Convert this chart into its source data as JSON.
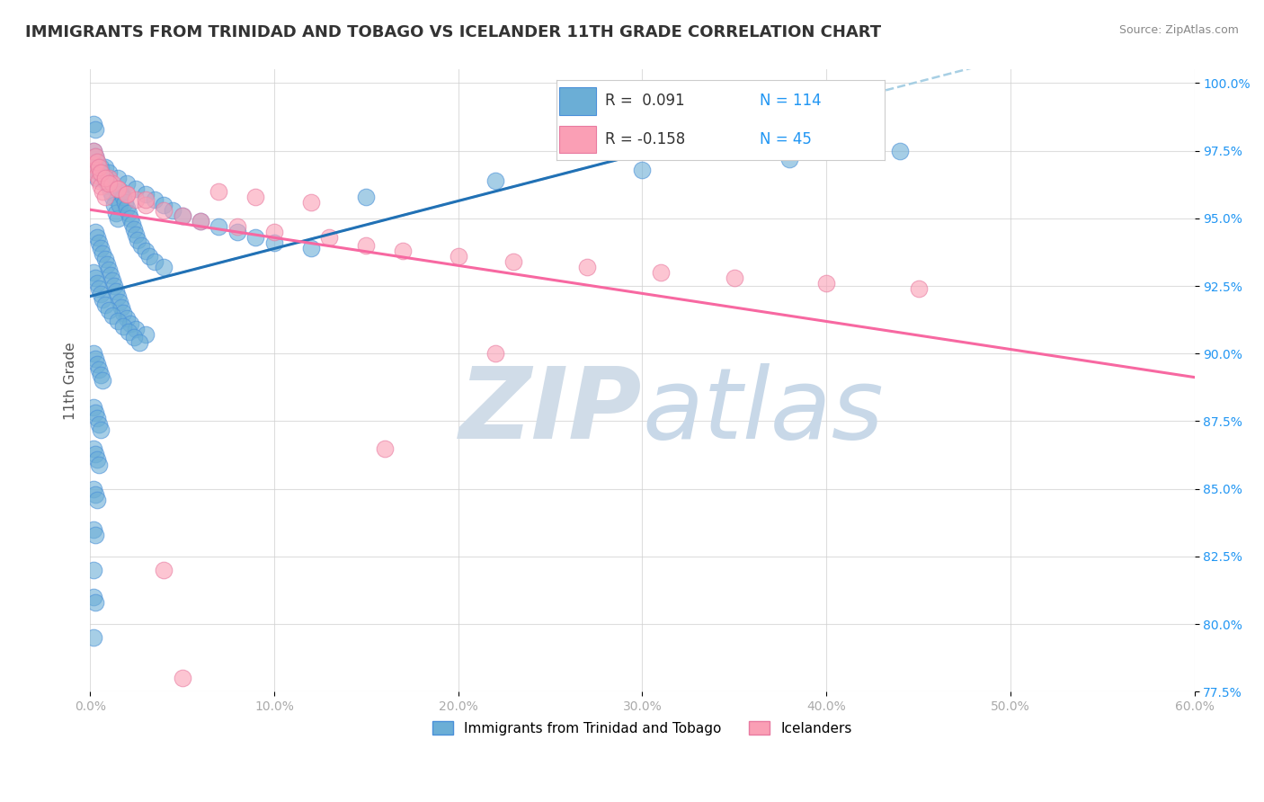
{
  "title": "IMMIGRANTS FROM TRINIDAD AND TOBAGO VS ICELANDER 11TH GRADE CORRELATION CHART",
  "source": "Source: ZipAtlas.com",
  "ylabel_label": "11th Grade",
  "xlim": [
    0.0,
    0.6
  ],
  "ylim": [
    0.775,
    1.005
  ],
  "yticks": [
    0.775,
    0.8,
    0.825,
    0.85,
    0.875,
    0.9,
    0.925,
    0.95,
    0.975,
    1.0
  ],
  "xticks": [
    0.0,
    0.1,
    0.2,
    0.3,
    0.4,
    0.5,
    0.6
  ],
  "legend_label1": "Immigrants from Trinidad and Tobago",
  "legend_label2": "Icelanders",
  "blue_color": "#6baed6",
  "pink_color": "#fa9fb5",
  "blue_line_color": "#2171b5",
  "pink_line_color": "#f768a1",
  "blue_dashed_color": "#9ecae1",
  "background_color": "#ffffff",
  "watermark_color": "#d0dce8",
  "R1": 0.091,
  "N1": 114,
  "R2": -0.158,
  "N2": 45,
  "blue_x": [
    0.002,
    0.003,
    0.004,
    0.005,
    0.006,
    0.007,
    0.008,
    0.009,
    0.01,
    0.011,
    0.012,
    0.013,
    0.014,
    0.015,
    0.016,
    0.017,
    0.018,
    0.019,
    0.02,
    0.021,
    0.022,
    0.023,
    0.024,
    0.025,
    0.026,
    0.028,
    0.03,
    0.032,
    0.035,
    0.04,
    0.003,
    0.004,
    0.005,
    0.006,
    0.007,
    0.008,
    0.009,
    0.01,
    0.011,
    0.012,
    0.013,
    0.014,
    0.015,
    0.016,
    0.017,
    0.018,
    0.02,
    0.022,
    0.025,
    0.03,
    0.002,
    0.003,
    0.004,
    0.005,
    0.006,
    0.007,
    0.008,
    0.01,
    0.012,
    0.015,
    0.018,
    0.021,
    0.024,
    0.027,
    0.002,
    0.003,
    0.004,
    0.005,
    0.006,
    0.007,
    0.002,
    0.003,
    0.004,
    0.005,
    0.006,
    0.002,
    0.003,
    0.004,
    0.005,
    0.002,
    0.003,
    0.004,
    0.002,
    0.003,
    0.002,
    0.002,
    0.003,
    0.002,
    0.15,
    0.22,
    0.3,
    0.38,
    0.44,
    0.002,
    0.003,
    0.004,
    0.008,
    0.01,
    0.015,
    0.02,
    0.025,
    0.03,
    0.035,
    0.04,
    0.045,
    0.05,
    0.06,
    0.07,
    0.08,
    0.09,
    0.1,
    0.12,
    0.002,
    0.003
  ],
  "blue_y": [
    0.97,
    0.968,
    0.965,
    0.967,
    0.969,
    0.966,
    0.964,
    0.963,
    0.962,
    0.96,
    0.958,
    0.955,
    0.952,
    0.95,
    0.955,
    0.96,
    0.958,
    0.956,
    0.954,
    0.952,
    0.95,
    0.948,
    0.946,
    0.944,
    0.942,
    0.94,
    0.938,
    0.936,
    0.934,
    0.932,
    0.945,
    0.943,
    0.941,
    0.939,
    0.937,
    0.935,
    0.933,
    0.931,
    0.929,
    0.927,
    0.925,
    0.923,
    0.921,
    0.919,
    0.917,
    0.915,
    0.913,
    0.911,
    0.909,
    0.907,
    0.93,
    0.928,
    0.926,
    0.924,
    0.922,
    0.92,
    0.918,
    0.916,
    0.914,
    0.912,
    0.91,
    0.908,
    0.906,
    0.904,
    0.9,
    0.898,
    0.896,
    0.894,
    0.892,
    0.89,
    0.88,
    0.878,
    0.876,
    0.874,
    0.872,
    0.865,
    0.863,
    0.861,
    0.859,
    0.85,
    0.848,
    0.846,
    0.835,
    0.833,
    0.82,
    0.81,
    0.808,
    0.795,
    0.958,
    0.964,
    0.968,
    0.972,
    0.975,
    0.975,
    0.973,
    0.971,
    0.969,
    0.967,
    0.965,
    0.963,
    0.961,
    0.959,
    0.957,
    0.955,
    0.953,
    0.951,
    0.949,
    0.947,
    0.945,
    0.943,
    0.941,
    0.939,
    0.985,
    0.983
  ],
  "pink_x": [
    0.002,
    0.003,
    0.004,
    0.005,
    0.006,
    0.007,
    0.008,
    0.01,
    0.012,
    0.015,
    0.02,
    0.025,
    0.03,
    0.04,
    0.05,
    0.06,
    0.08,
    0.1,
    0.13,
    0.15,
    0.17,
    0.2,
    0.23,
    0.27,
    0.31,
    0.35,
    0.4,
    0.45,
    0.002,
    0.003,
    0.004,
    0.005,
    0.006,
    0.008,
    0.01,
    0.015,
    0.02,
    0.03,
    0.04,
    0.05,
    0.07,
    0.09,
    0.12,
    0.16,
    0.22
  ],
  "pink_y": [
    0.97,
    0.968,
    0.966,
    0.964,
    0.962,
    0.96,
    0.958,
    0.965,
    0.963,
    0.961,
    0.959,
    0.957,
    0.955,
    0.953,
    0.951,
    0.949,
    0.947,
    0.945,
    0.943,
    0.94,
    0.938,
    0.936,
    0.934,
    0.932,
    0.93,
    0.928,
    0.926,
    0.924,
    0.975,
    0.973,
    0.971,
    0.969,
    0.967,
    0.965,
    0.963,
    0.961,
    0.959,
    0.957,
    0.82,
    0.78,
    0.96,
    0.958,
    0.956,
    0.865,
    0.9
  ]
}
